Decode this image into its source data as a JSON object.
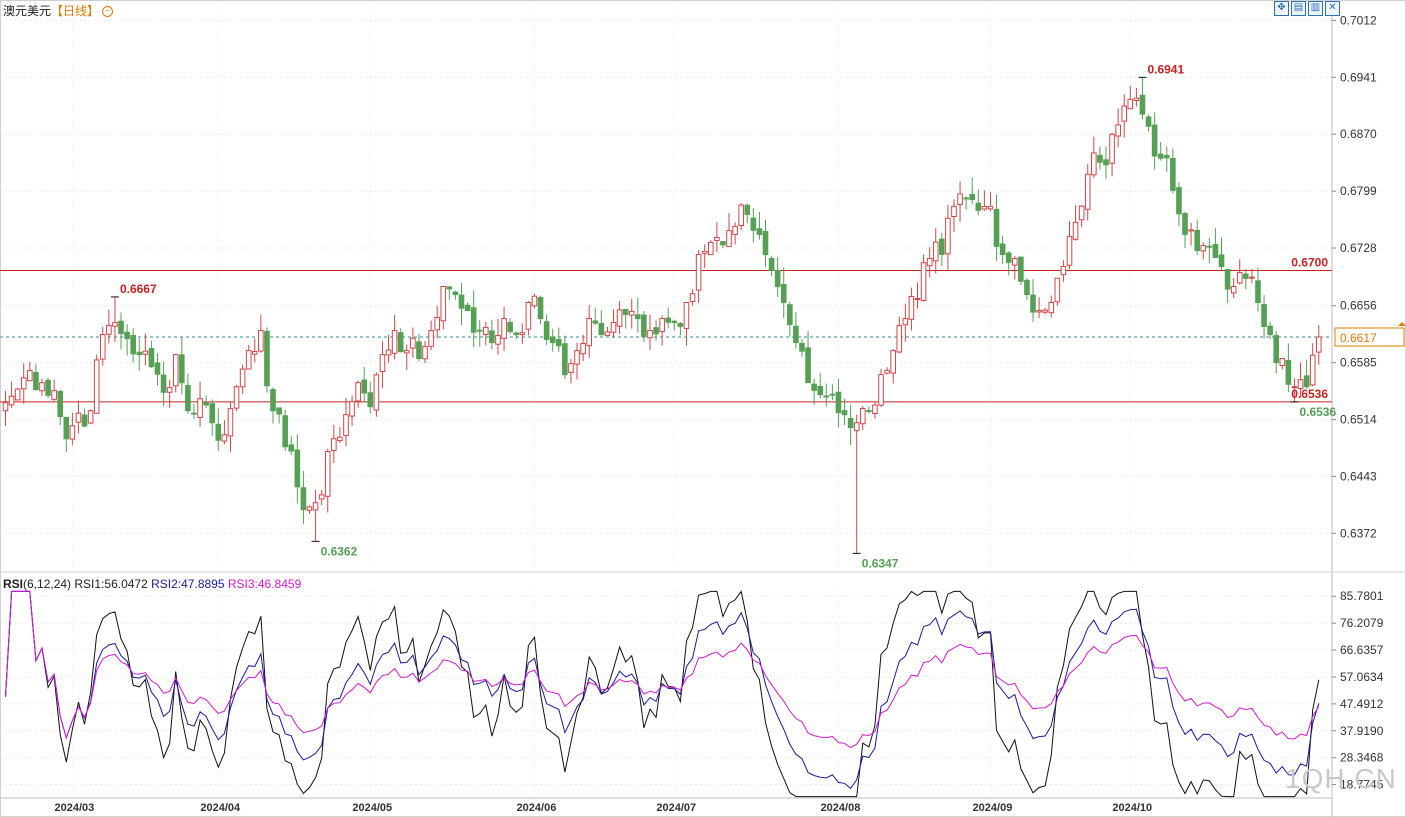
{
  "header": {
    "instrument": "澳元美元",
    "interval": "【日线】",
    "circle_icon": "minus-circle-icon"
  },
  "toolbar": {
    "icons": [
      "crosshair-icon",
      "chart-settings-icon",
      "chart-type-icon",
      "close-icon"
    ],
    "glyphs": [
      "✥",
      "▤",
      "▥",
      "✕"
    ]
  },
  "rsi_legend": {
    "name": "RSI",
    "params": "(6,12,24)",
    "rsi1": "RSI1:56.0472",
    "rsi2": "RSI2:47.8895",
    "rsi3": "RSI3:46.8459"
  },
  "watermark": "1QH.CN",
  "colors": {
    "up": "#d14747",
    "down": "#55a055",
    "level_line": "#c62222",
    "current_line": "#2b8f9a",
    "current_box": "#e07b00",
    "rsi1": "#111111",
    "rsi2": "#1a1a9c",
    "rsi3": "#d21bd2"
  },
  "chart_data": [
    {
      "type": "candlestick",
      "title": "澳元美元【日线】",
      "ylim": [
        0.6325,
        0.703
      ],
      "y_ticks": [
        "0.7012",
        "0.6941",
        "0.6870",
        "0.6799",
        "0.6728",
        "0.6656",
        "0.6585",
        "0.6514",
        "0.6443",
        "0.6372"
      ],
      "x_ticks": [
        "2024/03",
        "2024/04",
        "2024/05",
        "2024/06",
        "2024/07",
        "2024/08",
        "2024/09",
        "2024/10"
      ],
      "horizontal_lines": [
        {
          "value": 0.67,
          "label": "0.6700"
        },
        {
          "value": 0.6536,
          "label": "0.6536"
        }
      ],
      "current_price": {
        "value": 0.6617,
        "label": "0.6617"
      },
      "annotations": [
        {
          "x": 18,
          "value": 0.6667,
          "label": "0.6667",
          "kind": "high"
        },
        {
          "x": 51,
          "value": 0.6362,
          "label": "0.6362",
          "kind": "low"
        },
        {
          "x": 140,
          "value": 0.6347,
          "label": "0.6347",
          "kind": "low"
        },
        {
          "x": 187,
          "value": 0.6941,
          "label": "0.6941",
          "kind": "high"
        },
        {
          "x": 212,
          "value": 0.6536,
          "label": "0.6536",
          "kind": "low"
        }
      ],
      "ohlc_anchors": [
        [
          0,
          0.6535
        ],
        [
          2,
          0.6552
        ],
        [
          4,
          0.6575
        ],
        [
          6,
          0.656
        ],
        [
          8,
          0.655
        ],
        [
          10,
          0.649
        ],
        [
          12,
          0.6522
        ],
        [
          14,
          0.6525
        ],
        [
          16,
          0.662
        ],
        [
          18,
          0.6635
        ],
        [
          20,
          0.6615
        ],
        [
          22,
          0.6595
        ],
        [
          24,
          0.658
        ],
        [
          26,
          0.6548
        ],
        [
          28,
          0.6595
        ],
        [
          30,
          0.6525
        ],
        [
          32,
          0.654
        ],
        [
          34,
          0.651
        ],
        [
          36,
          0.6495
        ],
        [
          38,
          0.6555
        ],
        [
          40,
          0.66
        ],
        [
          42,
          0.6625
        ],
        [
          44,
          0.6525
        ],
        [
          46,
          0.648
        ],
        [
          48,
          0.643
        ],
        [
          50,
          0.6405
        ],
        [
          52,
          0.642
        ],
        [
          54,
          0.649
        ],
        [
          56,
          0.652
        ],
        [
          58,
          0.656
        ],
        [
          60,
          0.653
        ],
        [
          62,
          0.6595
        ],
        [
          64,
          0.6625
        ],
        [
          66,
          0.66
        ],
        [
          68,
          0.659
        ],
        [
          70,
          0.6625
        ],
        [
          72,
          0.668
        ],
        [
          74,
          0.667
        ],
        [
          76,
          0.665
        ],
        [
          78,
          0.6625
        ],
        [
          80,
          0.661
        ],
        [
          82,
          0.664
        ],
        [
          84,
          0.662
        ],
        [
          86,
          0.666
        ],
        [
          88,
          0.664
        ],
        [
          90,
          0.661
        ],
        [
          92,
          0.657
        ],
        [
          94,
          0.66
        ],
        [
          96,
          0.664
        ],
        [
          98,
          0.662
        ],
        [
          100,
          0.6635
        ],
        [
          102,
          0.6645
        ],
        [
          104,
          0.664
        ],
        [
          106,
          0.6625
        ],
        [
          108,
          0.664
        ],
        [
          110,
          0.6635
        ],
        [
          112,
          0.666
        ],
        [
          114,
          0.672
        ],
        [
          116,
          0.6735
        ],
        [
          118,
          0.6732
        ],
        [
          120,
          0.6755
        ],
        [
          122,
          0.677
        ],
        [
          124,
          0.6745
        ],
        [
          126,
          0.67
        ],
        [
          128,
          0.666
        ],
        [
          130,
          0.661
        ],
        [
          132,
          0.656
        ],
        [
          134,
          0.6545
        ],
        [
          136,
          0.6545
        ],
        [
          138,
          0.652
        ],
        [
          140,
          0.651
        ],
        [
          142,
          0.6525
        ],
        [
          144,
          0.657
        ],
        [
          146,
          0.66
        ],
        [
          148,
          0.664
        ],
        [
          150,
          0.6665
        ],
        [
          152,
          0.6715
        ],
        [
          154,
          0.672
        ],
        [
          156,
          0.678
        ],
        [
          158,
          0.679
        ],
        [
          160,
          0.6775
        ],
        [
          162,
          0.678
        ],
        [
          164,
          0.672
        ],
        [
          166,
          0.6715
        ],
        [
          168,
          0.667
        ],
        [
          170,
          0.665
        ],
        [
          172,
          0.666
        ],
        [
          174,
          0.6705
        ],
        [
          176,
          0.676
        ],
        [
          178,
          0.682
        ],
        [
          180,
          0.6835
        ],
        [
          182,
          0.687
        ],
        [
          184,
          0.6905
        ],
        [
          186,
          0.6915
        ],
        [
          188,
          0.688
        ],
        [
          190,
          0.684
        ],
        [
          192,
          0.68
        ],
        [
          194,
          0.6745
        ],
        [
          196,
          0.6725
        ],
        [
          198,
          0.673
        ],
        [
          200,
          0.6705
        ],
        [
          202,
          0.668
        ],
        [
          204,
          0.669
        ],
        [
          206,
          0.666
        ],
        [
          208,
          0.662
        ],
        [
          210,
          0.659
        ],
        [
          212,
          0.6555
        ],
        [
          214,
          0.6555
        ],
        [
          216,
          0.6617
        ]
      ]
    },
    {
      "type": "line",
      "title": "RSI(6,12,24)",
      "ylim": [
        14.0,
        88.0
      ],
      "y_ticks": [
        "85.7801",
        "76.2079",
        "66.6357",
        "57.0634",
        "47.4912",
        "37.9190",
        "28.3468",
        "18.7745"
      ],
      "series": [
        {
          "name": "RSI1",
          "last": 56.0472
        },
        {
          "name": "RSI2",
          "last": 47.8895
        },
        {
          "name": "RSI3",
          "last": 46.8459
        }
      ]
    }
  ]
}
